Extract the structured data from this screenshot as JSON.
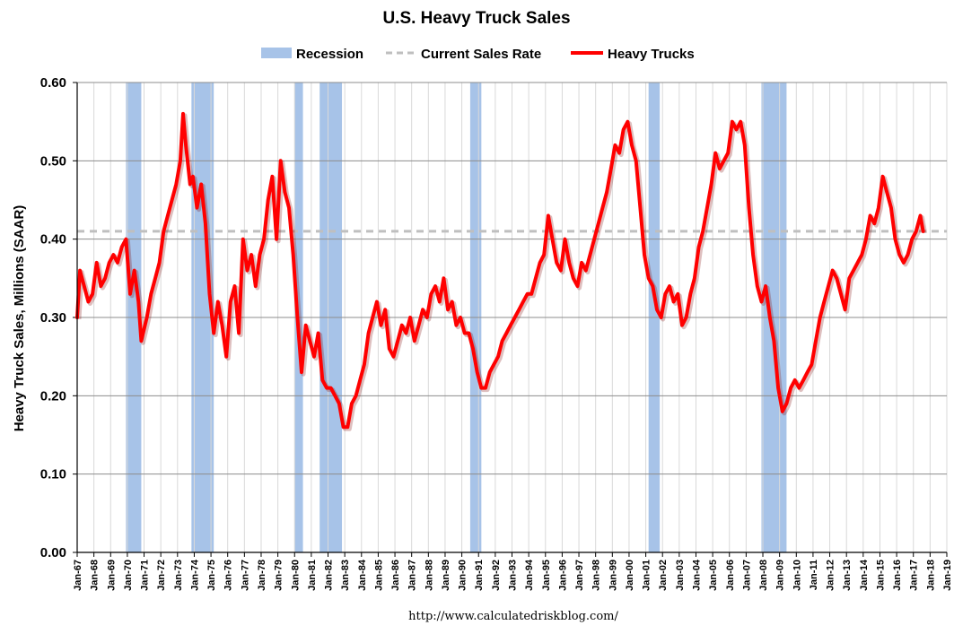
{
  "chart_data": {
    "type": "line",
    "title": "U.S. Heavy Truck Sales",
    "ylabel": "Heavy Truck Sales, Millions (SAAR)",
    "xlabel": "",
    "source": "http://www.calculatedriskblog.com/",
    "ylim": [
      0,
      0.6
    ],
    "xlim": [
      "1967-01",
      "2019-01"
    ],
    "yticks": [
      "0.00",
      "0.10",
      "0.20",
      "0.30",
      "0.40",
      "0.50",
      "0.60"
    ],
    "xticks": [
      "Jan-67",
      "Jan-68",
      "Jan-69",
      "Jan-70",
      "Jan-71",
      "Jan-72",
      "Jan-73",
      "Jan-74",
      "Jan-75",
      "Jan-76",
      "Jan-77",
      "Jan-78",
      "Jan-79",
      "Jan-80",
      "Jan-81",
      "Jan-82",
      "Jan-83",
      "Jan-84",
      "Jan-85",
      "Jan-86",
      "Jan-87",
      "Jan-88",
      "Jan-89",
      "Jan-90",
      "Jan-91",
      "Jan-92",
      "Jan-93",
      "Jan-94",
      "Jan-95",
      "Jan-96",
      "Jan-97",
      "Jan-98",
      "Jan-99",
      "Jan-00",
      "Jan-01",
      "Jan-02",
      "Jan-03",
      "Jan-04",
      "Jan-05",
      "Jan-06",
      "Jan-07",
      "Jan-08",
      "Jan-09",
      "Jan-10",
      "Jan-11",
      "Jan-12",
      "Jan-13",
      "Jan-14",
      "Jan-15",
      "Jan-16",
      "Jan-17",
      "Jan-18",
      "Jan-19"
    ],
    "grid": true,
    "legend_position": "top",
    "legend": [
      {
        "name": "Recession",
        "kind": "recession",
        "color": "#a7c3e8"
      },
      {
        "name": "Current Sales Rate",
        "kind": "dashed",
        "color": "#bfbfbf"
      },
      {
        "name": "Heavy Trucks",
        "kind": "line",
        "color": "#ff0000"
      }
    ],
    "recessions": [
      {
        "start": "1969-12",
        "end": "1970-11"
      },
      {
        "start": "1973-11",
        "end": "1975-03"
      },
      {
        "start": "1980-01",
        "end": "1980-07"
      },
      {
        "start": "1981-07",
        "end": "1982-11"
      },
      {
        "start": "1990-07",
        "end": "1991-03"
      },
      {
        "start": "2001-03",
        "end": "2001-11"
      },
      {
        "start": "2007-12",
        "end": "2009-06"
      }
    ],
    "current_rate": 0.41,
    "series": [
      {
        "name": "Heavy Trucks",
        "color": "#ff0000",
        "points": [
          [
            "1967-01",
            0.3
          ],
          [
            "1967-03",
            0.36
          ],
          [
            "1967-06",
            0.34
          ],
          [
            "1967-09",
            0.32
          ],
          [
            "1967-12",
            0.33
          ],
          [
            "1968-03",
            0.37
          ],
          [
            "1968-06",
            0.34
          ],
          [
            "1968-09",
            0.35
          ],
          [
            "1968-12",
            0.37
          ],
          [
            "1969-03",
            0.38
          ],
          [
            "1969-06",
            0.37
          ],
          [
            "1969-09",
            0.39
          ],
          [
            "1969-12",
            0.4
          ],
          [
            "1970-03",
            0.33
          ],
          [
            "1970-06",
            0.36
          ],
          [
            "1970-09",
            0.32
          ],
          [
            "1970-11",
            0.27
          ],
          [
            "1971-03",
            0.3
          ],
          [
            "1971-06",
            0.33
          ],
          [
            "1971-09",
            0.35
          ],
          [
            "1971-12",
            0.37
          ],
          [
            "1972-03",
            0.41
          ],
          [
            "1972-06",
            0.43
          ],
          [
            "1972-09",
            0.45
          ],
          [
            "1972-12",
            0.47
          ],
          [
            "1973-03",
            0.5
          ],
          [
            "1973-05",
            0.56
          ],
          [
            "1973-07",
            0.52
          ],
          [
            "1973-10",
            0.47
          ],
          [
            "1973-12",
            0.48
          ],
          [
            "1974-03",
            0.44
          ],
          [
            "1974-06",
            0.47
          ],
          [
            "1974-09",
            0.42
          ],
          [
            "1974-12",
            0.33
          ],
          [
            "1975-03",
            0.28
          ],
          [
            "1975-06",
            0.32
          ],
          [
            "1975-09",
            0.29
          ],
          [
            "1975-12",
            0.25
          ],
          [
            "1976-03",
            0.32
          ],
          [
            "1976-06",
            0.34
          ],
          [
            "1976-09",
            0.28
          ],
          [
            "1976-12",
            0.4
          ],
          [
            "1977-03",
            0.36
          ],
          [
            "1977-06",
            0.38
          ],
          [
            "1977-09",
            0.34
          ],
          [
            "1977-12",
            0.38
          ],
          [
            "1978-03",
            0.4
          ],
          [
            "1978-06",
            0.45
          ],
          [
            "1978-09",
            0.48
          ],
          [
            "1978-12",
            0.4
          ],
          [
            "1979-03",
            0.5
          ],
          [
            "1979-06",
            0.46
          ],
          [
            "1979-09",
            0.44
          ],
          [
            "1979-12",
            0.38
          ],
          [
            "1980-03",
            0.3
          ],
          [
            "1980-06",
            0.23
          ],
          [
            "1980-09",
            0.29
          ],
          [
            "1980-12",
            0.27
          ],
          [
            "1981-03",
            0.25
          ],
          [
            "1981-06",
            0.28
          ],
          [
            "1981-09",
            0.22
          ],
          [
            "1981-12",
            0.21
          ],
          [
            "1982-03",
            0.21
          ],
          [
            "1982-06",
            0.2
          ],
          [
            "1982-09",
            0.19
          ],
          [
            "1982-12",
            0.16
          ],
          [
            "1983-03",
            0.16
          ],
          [
            "1983-06",
            0.19
          ],
          [
            "1983-09",
            0.2
          ],
          [
            "1983-12",
            0.22
          ],
          [
            "1984-03",
            0.24
          ],
          [
            "1984-06",
            0.28
          ],
          [
            "1984-09",
            0.3
          ],
          [
            "1984-12",
            0.32
          ],
          [
            "1985-03",
            0.29
          ],
          [
            "1985-06",
            0.31
          ],
          [
            "1985-09",
            0.26
          ],
          [
            "1985-12",
            0.25
          ],
          [
            "1986-03",
            0.27
          ],
          [
            "1986-06",
            0.29
          ],
          [
            "1986-09",
            0.28
          ],
          [
            "1986-12",
            0.3
          ],
          [
            "1987-03",
            0.27
          ],
          [
            "1987-06",
            0.29
          ],
          [
            "1987-09",
            0.31
          ],
          [
            "1987-12",
            0.3
          ],
          [
            "1988-03",
            0.33
          ],
          [
            "1988-06",
            0.34
          ],
          [
            "1988-09",
            0.32
          ],
          [
            "1988-12",
            0.35
          ],
          [
            "1989-03",
            0.31
          ],
          [
            "1989-06",
            0.32
          ],
          [
            "1989-09",
            0.29
          ],
          [
            "1989-12",
            0.3
          ],
          [
            "1990-03",
            0.28
          ],
          [
            "1990-06",
            0.28
          ],
          [
            "1990-09",
            0.26
          ],
          [
            "1990-12",
            0.23
          ],
          [
            "1991-03",
            0.21
          ],
          [
            "1991-06",
            0.21
          ],
          [
            "1991-09",
            0.23
          ],
          [
            "1991-12",
            0.24
          ],
          [
            "1992-03",
            0.25
          ],
          [
            "1992-06",
            0.27
          ],
          [
            "1992-09",
            0.28
          ],
          [
            "1992-12",
            0.29
          ],
          [
            "1993-03",
            0.3
          ],
          [
            "1993-06",
            0.31
          ],
          [
            "1993-09",
            0.32
          ],
          [
            "1993-12",
            0.33
          ],
          [
            "1994-03",
            0.33
          ],
          [
            "1994-06",
            0.35
          ],
          [
            "1994-09",
            0.37
          ],
          [
            "1994-12",
            0.38
          ],
          [
            "1995-03",
            0.43
          ],
          [
            "1995-06",
            0.4
          ],
          [
            "1995-09",
            0.37
          ],
          [
            "1995-12",
            0.36
          ],
          [
            "1996-03",
            0.4
          ],
          [
            "1996-06",
            0.37
          ],
          [
            "1996-09",
            0.35
          ],
          [
            "1996-12",
            0.34
          ],
          [
            "1997-03",
            0.37
          ],
          [
            "1997-06",
            0.36
          ],
          [
            "1997-09",
            0.38
          ],
          [
            "1997-12",
            0.4
          ],
          [
            "1998-03",
            0.42
          ],
          [
            "1998-06",
            0.44
          ],
          [
            "1998-09",
            0.46
          ],
          [
            "1998-12",
            0.49
          ],
          [
            "1999-03",
            0.52
          ],
          [
            "1999-06",
            0.51
          ],
          [
            "1999-09",
            0.54
          ],
          [
            "1999-12",
            0.55
          ],
          [
            "2000-03",
            0.52
          ],
          [
            "2000-06",
            0.5
          ],
          [
            "2000-09",
            0.44
          ],
          [
            "2000-12",
            0.38
          ],
          [
            "2001-03",
            0.35
          ],
          [
            "2001-06",
            0.34
          ],
          [
            "2001-09",
            0.31
          ],
          [
            "2001-12",
            0.3
          ],
          [
            "2002-03",
            0.33
          ],
          [
            "2002-06",
            0.34
          ],
          [
            "2002-09",
            0.32
          ],
          [
            "2002-12",
            0.33
          ],
          [
            "2003-03",
            0.29
          ],
          [
            "2003-06",
            0.3
          ],
          [
            "2003-09",
            0.33
          ],
          [
            "2003-12",
            0.35
          ],
          [
            "2004-03",
            0.39
          ],
          [
            "2004-06",
            0.41
          ],
          [
            "2004-09",
            0.44
          ],
          [
            "2004-12",
            0.47
          ],
          [
            "2005-03",
            0.51
          ],
          [
            "2005-06",
            0.49
          ],
          [
            "2005-09",
            0.5
          ],
          [
            "2005-12",
            0.51
          ],
          [
            "2006-03",
            0.55
          ],
          [
            "2006-06",
            0.54
          ],
          [
            "2006-09",
            0.55
          ],
          [
            "2006-12",
            0.52
          ],
          [
            "2007-03",
            0.44
          ],
          [
            "2007-06",
            0.38
          ],
          [
            "2007-09",
            0.34
          ],
          [
            "2007-12",
            0.32
          ],
          [
            "2008-03",
            0.34
          ],
          [
            "2008-06",
            0.3
          ],
          [
            "2008-09",
            0.27
          ],
          [
            "2008-12",
            0.21
          ],
          [
            "2009-03",
            0.18
          ],
          [
            "2009-06",
            0.19
          ],
          [
            "2009-09",
            0.21
          ],
          [
            "2009-12",
            0.22
          ],
          [
            "2010-03",
            0.21
          ],
          [
            "2010-06",
            0.22
          ],
          [
            "2010-09",
            0.23
          ],
          [
            "2010-12",
            0.24
          ],
          [
            "2011-03",
            0.27
          ],
          [
            "2011-06",
            0.3
          ],
          [
            "2011-09",
            0.32
          ],
          [
            "2011-12",
            0.34
          ],
          [
            "2012-03",
            0.36
          ],
          [
            "2012-06",
            0.35
          ],
          [
            "2012-09",
            0.33
          ],
          [
            "2012-12",
            0.31
          ],
          [
            "2013-03",
            0.35
          ],
          [
            "2013-06",
            0.36
          ],
          [
            "2013-09",
            0.37
          ],
          [
            "2013-12",
            0.38
          ],
          [
            "2014-03",
            0.4
          ],
          [
            "2014-06",
            0.43
          ],
          [
            "2014-09",
            0.42
          ],
          [
            "2014-12",
            0.44
          ],
          [
            "2015-03",
            0.48
          ],
          [
            "2015-06",
            0.46
          ],
          [
            "2015-09",
            0.44
          ],
          [
            "2015-12",
            0.4
          ],
          [
            "2016-03",
            0.38
          ],
          [
            "2016-06",
            0.37
          ],
          [
            "2016-09",
            0.38
          ],
          [
            "2016-12",
            0.4
          ],
          [
            "2017-03",
            0.41
          ],
          [
            "2017-06",
            0.43
          ],
          [
            "2017-08",
            0.41
          ]
        ]
      }
    ]
  }
}
